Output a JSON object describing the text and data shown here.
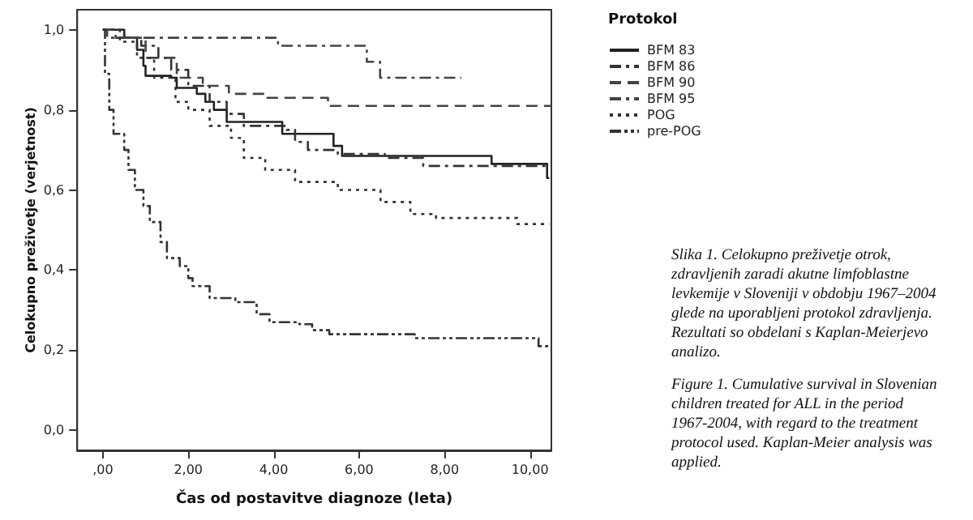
{
  "chart_data": {
    "type": "step",
    "xlabel": "Čas od postavitve diagnoze (leta)",
    "ylabel": "Celokupno preživetje (verjetnost)",
    "legend_title": "Protokol",
    "legend": "right",
    "grid": false,
    "marker": "none",
    "xlim": [
      -0.6,
      10.5
    ],
    "ylim": [
      -0.05,
      1.05
    ],
    "xticks": [
      {
        "value": 0,
        "label": ",00"
      },
      {
        "value": 2,
        "label": "2,00"
      },
      {
        "value": 4,
        "label": "4,00"
      },
      {
        "value": 6,
        "label": "6,00"
      },
      {
        "value": 8,
        "label": "8,00"
      },
      {
        "value": 10,
        "label": "10,00"
      }
    ],
    "yticks": [
      {
        "value": 0,
        "label": "0,0"
      },
      {
        "value": 0.2,
        "label": "0,2"
      },
      {
        "value": 0.4,
        "label": "0,4"
      },
      {
        "value": 0.6,
        "label": "0,6"
      },
      {
        "value": 0.8,
        "label": "0,8"
      },
      {
        "value": 1,
        "label": "1,0"
      }
    ],
    "series": [
      {
        "name": "BFM 83",
        "color": "#222222",
        "line_style": "solid",
        "x": [
          0,
          0.5,
          0.8,
          0.95,
          1.0,
          1.6,
          1.73,
          2.2,
          2.4,
          2.6,
          2.9,
          4.2,
          5.4,
          5.6,
          9.1,
          10.4,
          10.45
        ],
        "values": [
          1.0,
          0.98,
          0.95,
          0.91,
          0.885,
          0.88,
          0.855,
          0.84,
          0.82,
          0.8,
          0.77,
          0.74,
          0.71,
          0.685,
          0.665,
          0.63,
          0.63
        ]
      },
      {
        "name": "BFM 86",
        "color": "#333333",
        "line_style": "dashdot",
        "x": [
          0,
          0.5,
          0.9,
          1.3,
          1.6,
          2.0,
          2.5,
          2.9,
          3.3,
          4.3,
          4.5,
          4.8,
          5.5,
          6.6,
          7.5,
          10.4
        ],
        "values": [
          1.0,
          0.98,
          0.96,
          0.93,
          0.9,
          0.86,
          0.82,
          0.79,
          0.76,
          0.75,
          0.72,
          0.7,
          0.69,
          0.68,
          0.66,
          0.66
        ]
      },
      {
        "name": "BFM 90",
        "color": "#444444",
        "line_style": "dashed",
        "x": [
          0,
          0.3,
          1.0,
          1.73,
          2.34,
          2.95,
          3.8,
          5.27,
          10.5
        ],
        "values": [
          1.0,
          0.98,
          0.93,
          0.88,
          0.86,
          0.84,
          0.83,
          0.81,
          0.81
        ]
      },
      {
        "name": "BFM 95",
        "color": "#444444",
        "line_style": "dashdot",
        "x": [
          0,
          0.1,
          4.1,
          6.18,
          6.49,
          8.39
        ],
        "values": [
          1.0,
          0.98,
          0.96,
          0.92,
          0.88,
          0.88
        ]
      },
      {
        "name": "POG",
        "color": "#333333",
        "line_style": "dotted",
        "x": [
          0,
          0.4,
          0.8,
          1.2,
          1.7,
          2.0,
          2.5,
          3.0,
          3.3,
          3.8,
          4.5,
          5.5,
          6.5,
          7.2,
          7.8,
          9.7,
          10.45
        ],
        "values": [
          1.0,
          0.97,
          0.93,
          0.88,
          0.82,
          0.8,
          0.76,
          0.73,
          0.68,
          0.65,
          0.62,
          0.6,
          0.57,
          0.54,
          0.53,
          0.515,
          0.515
        ]
      },
      {
        "name": "pre-POG",
        "color": "#333333",
        "line_style": "dashdotdot",
        "x": [
          0,
          0.05,
          0.15,
          0.25,
          0.5,
          0.6,
          0.75,
          0.95,
          1.1,
          1.35,
          1.5,
          1.8,
          2.0,
          2.1,
          2.5,
          3.1,
          3.6,
          3.9,
          4.6,
          4.9,
          5.3,
          7.3,
          10.2,
          10.5
        ],
        "values": [
          1.0,
          0.89,
          0.8,
          0.74,
          0.7,
          0.65,
          0.6,
          0.56,
          0.52,
          0.47,
          0.43,
          0.41,
          0.38,
          0.36,
          0.33,
          0.32,
          0.29,
          0.27,
          0.265,
          0.25,
          0.24,
          0.23,
          0.21,
          0.21
        ]
      }
    ],
    "annotations": [
      "Slika 1. Celokupno preživetje otrok, zdravljenih zaradi akutne limfoblastne levkemije v Sloveniji v obdobju 1967–2004 glede na uporabljeni protokol zdravljenja. Rezultati so obdelani s Kaplan-Meierjevo analizo.",
      "Figure 1. Cumulative survival in Slovenian children treated for ALL in the period 1967-2004, with regard to the treatment protocol used. Kaplan-Meier analysis was applied."
    ]
  }
}
